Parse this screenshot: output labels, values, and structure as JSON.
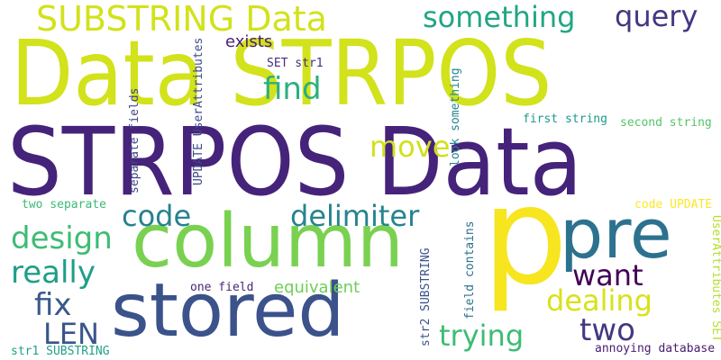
{
  "words": [
    {
      "text": "STRPOS Data",
      "color": "#46237a"
    },
    {
      "text": "Data STRPOS",
      "color": "#d2e21b"
    },
    {
      "text": "p",
      "color": "#f7e51f"
    },
    {
      "text": "column",
      "color": "#7ad151"
    },
    {
      "text": "stored",
      "color": "#3b528b"
    },
    {
      "text": "pre",
      "color": "#2c728e"
    },
    {
      "text": "SUBSTRING Data",
      "color": "#d2e21b"
    },
    {
      "text": "something",
      "color": "#21a685"
    },
    {
      "text": "query",
      "color": "#453781"
    },
    {
      "text": "find",
      "color": "#2ab07f"
    },
    {
      "text": "move",
      "color": "#d0e11c"
    },
    {
      "text": "code",
      "color": "#26828e"
    },
    {
      "text": "delimiter",
      "color": "#25848e"
    },
    {
      "text": "design",
      "color": "#3dbc74"
    },
    {
      "text": "really",
      "color": "#1f9e89"
    },
    {
      "text": "want",
      "color": "#440154"
    },
    {
      "text": "fix",
      "color": "#38598c"
    },
    {
      "text": "dealing",
      "color": "#d8e219"
    },
    {
      "text": "LEN",
      "color": "#39558c"
    },
    {
      "text": "two",
      "color": "#453882"
    },
    {
      "text": "trying",
      "color": "#3dbc74"
    },
    {
      "text": "exists",
      "color": "#481f70"
    },
    {
      "text": "equivalent",
      "color": "#6ece58"
    },
    {
      "text": "SET str1",
      "color": "#472c7a"
    },
    {
      "text": "first string",
      "color": "#1f9a8a"
    },
    {
      "text": "second string",
      "color": "#54c568"
    },
    {
      "text": "two separate",
      "color": "#3aba76"
    },
    {
      "text": "code UPDATE",
      "color": "#fde725"
    },
    {
      "text": "one field",
      "color": "#482677"
    },
    {
      "text": "annoying database",
      "color": "#481b6d"
    },
    {
      "text": "str1 SUBSTRING",
      "color": "#1fa187"
    },
    {
      "text": "UPDATE UserAttributes",
      "color": "#3e4989"
    },
    {
      "text": "separate fields",
      "color": "#414487"
    },
    {
      "text": "look something",
      "color": "#25848e"
    },
    {
      "text": "field contains",
      "color": "#2d708e"
    },
    {
      "text": "str2 SUBSTRING",
      "color": "#3b528b"
    },
    {
      "text": "UserAttributes SET",
      "color": "#b5de2b"
    }
  ]
}
